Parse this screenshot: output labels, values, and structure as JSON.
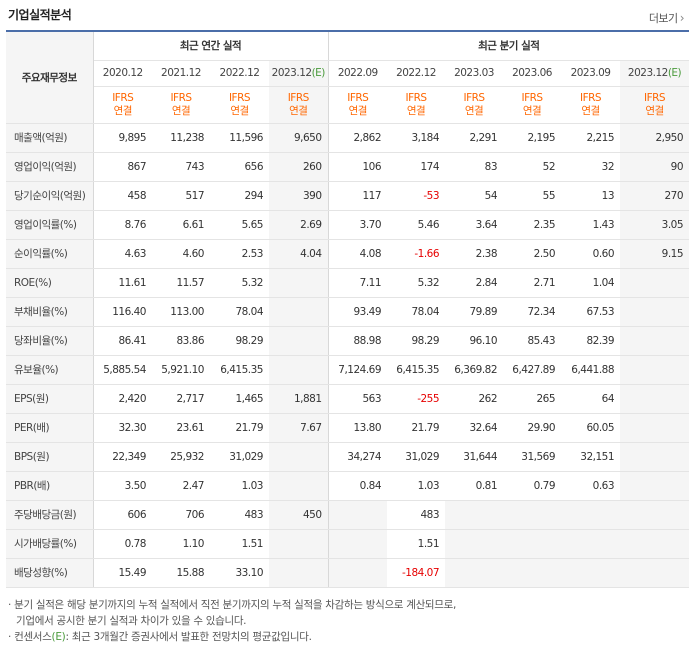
{
  "title": "기업실적분석",
  "more_label": "더보기",
  "header": {
    "row_label": "주요재무정보",
    "annual_group": "최근 연간 실적",
    "quarter_group": "최근 분기 실적",
    "periods": [
      "2020.12",
      "2021.12",
      "2022.12",
      "2023.12",
      "2022.09",
      "2022.12",
      "2023.03",
      "2023.06",
      "2023.09",
      "2023.12"
    ],
    "estimate_mark": "(E)",
    "basis_line1": "IFRS",
    "basis_line2": "연결"
  },
  "rows": [
    {
      "label": "매출액(억원)",
      "values": [
        "9,895",
        "11,238",
        "11,596",
        "9,650",
        "2,862",
        "3,184",
        "2,291",
        "2,195",
        "2,215",
        "2,950"
      ]
    },
    {
      "label": "영업이익(억원)",
      "values": [
        "867",
        "743",
        "656",
        "260",
        "106",
        "174",
        "83",
        "52",
        "32",
        "90"
      ]
    },
    {
      "label": "당기순이익(억원)",
      "values": [
        "458",
        "517",
        "294",
        "390",
        "117",
        "-53",
        "54",
        "55",
        "13",
        "270"
      ]
    },
    {
      "label": "영업이익률(%)",
      "values": [
        "8.76",
        "6.61",
        "5.65",
        "2.69",
        "3.70",
        "5.46",
        "3.64",
        "2.35",
        "1.43",
        "3.05"
      ]
    },
    {
      "label": "순이익률(%)",
      "values": [
        "4.63",
        "4.60",
        "2.53",
        "4.04",
        "4.08",
        "-1.66",
        "2.38",
        "2.50",
        "0.60",
        "9.15"
      ]
    },
    {
      "label": "ROE(%)",
      "values": [
        "11.61",
        "11.57",
        "5.32",
        "",
        "7.11",
        "5.32",
        "2.84",
        "2.71",
        "1.04",
        ""
      ]
    },
    {
      "label": "부채비율(%)",
      "values": [
        "116.40",
        "113.00",
        "78.04",
        "",
        "93.49",
        "78.04",
        "79.89",
        "72.34",
        "67.53",
        ""
      ]
    },
    {
      "label": "당좌비율(%)",
      "values": [
        "86.41",
        "83.86",
        "98.29",
        "",
        "88.98",
        "98.29",
        "96.10",
        "85.43",
        "82.39",
        ""
      ]
    },
    {
      "label": "유보율(%)",
      "values": [
        "5,885.54",
        "5,921.10",
        "6,415.35",
        "",
        "7,124.69",
        "6,415.35",
        "6,369.82",
        "6,427.89",
        "6,441.88",
        ""
      ]
    },
    {
      "label": "EPS(원)",
      "values": [
        "2,420",
        "2,717",
        "1,465",
        "1,881",
        "563",
        "-255",
        "262",
        "265",
        "64",
        ""
      ]
    },
    {
      "label": "PER(배)",
      "values": [
        "32.30",
        "23.61",
        "21.79",
        "7.67",
        "13.80",
        "21.79",
        "32.64",
        "29.90",
        "60.05",
        ""
      ]
    },
    {
      "label": "BPS(원)",
      "values": [
        "22,349",
        "25,932",
        "31,029",
        "",
        "34,274",
        "31,029",
        "31,644",
        "31,569",
        "32,151",
        ""
      ]
    },
    {
      "label": "PBR(배)",
      "values": [
        "3.50",
        "2.47",
        "1.03",
        "",
        "0.84",
        "1.03",
        "0.81",
        "0.79",
        "0.63",
        ""
      ]
    },
    {
      "label": "주당배당금(원)",
      "values": [
        "606",
        "706",
        "483",
        "450",
        "",
        "483",
        "",
        "",
        "",
        ""
      ]
    },
    {
      "label": "시가배당률(%)",
      "values": [
        "0.78",
        "1.10",
        "1.51",
        "",
        "",
        "1.51",
        "",
        "",
        "",
        ""
      ]
    },
    {
      "label": "배당성향(%)",
      "values": [
        "15.49",
        "15.88",
        "33.10",
        "",
        "",
        "-184.07",
        "",
        "",
        "",
        ""
      ]
    }
  ],
  "notes": {
    "line1": "분기 실적은 해당 분기까지의 누적 실적에서 직전 분기까지의 누적 실적을 차감하는 방식으로 계산되므로,",
    "line2": "기업에서 공시한 분기 실적과 차이가 있을 수 있습니다.",
    "line3_prefix": "컨센서스",
    "line3_mark": "(E)",
    "line3_suffix": ": 최근 3개월간 증권사에서 발표한 전망치의 평균값입니다."
  },
  "colors": {
    "accent_border": "#4b6ea9",
    "basis_text": "#ff6600",
    "negative": "#e60000",
    "estimate_mark": "#4b9b3d"
  }
}
